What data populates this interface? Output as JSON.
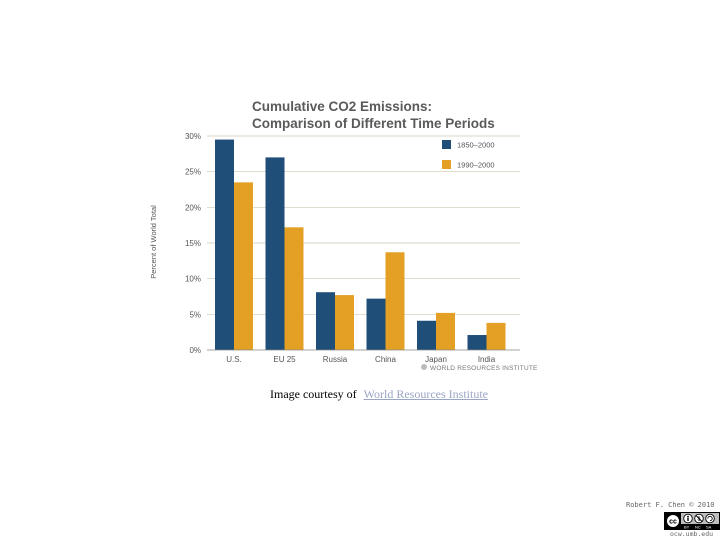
{
  "chart_data": {
    "type": "bar",
    "title": [
      "Cumulative CO2 Emissions:",
      "Comparison of Different Time Periods"
    ],
    "ylabel": "Percent of World Total",
    "xlabel": "",
    "ylim": [
      0,
      30
    ],
    "yticks": [
      0,
      5,
      10,
      15,
      20,
      25,
      30
    ],
    "ytick_labels": [
      "0%",
      "5%",
      "10%",
      "15%",
      "20%",
      "25%",
      "30%"
    ],
    "categories": [
      "U.S.",
      "EU 25",
      "Russia",
      "China",
      "Japan",
      "India"
    ],
    "series": [
      {
        "name": "1850–2000",
        "color": "#1f4e79",
        "values": [
          29.5,
          27,
          8.1,
          7.2,
          4.1,
          2.1
        ]
      },
      {
        "name": "1990–2000",
        "color": "#e3a024",
        "values": [
          23.5,
          17.2,
          7.7,
          13.7,
          5.2,
          3.8
        ]
      }
    ],
    "grid": true,
    "legend": "top-right",
    "source_mark": "WORLD RESOURCES INSTITUTE"
  },
  "caption": {
    "prefix": "Image courtesy of",
    "link": "World Resources Institute"
  },
  "footer": {
    "author": "Robert F. Chen © 2010",
    "url": "ocw.umb.edu",
    "license_icon": "creative-commons-by-nc-sa-badge"
  }
}
